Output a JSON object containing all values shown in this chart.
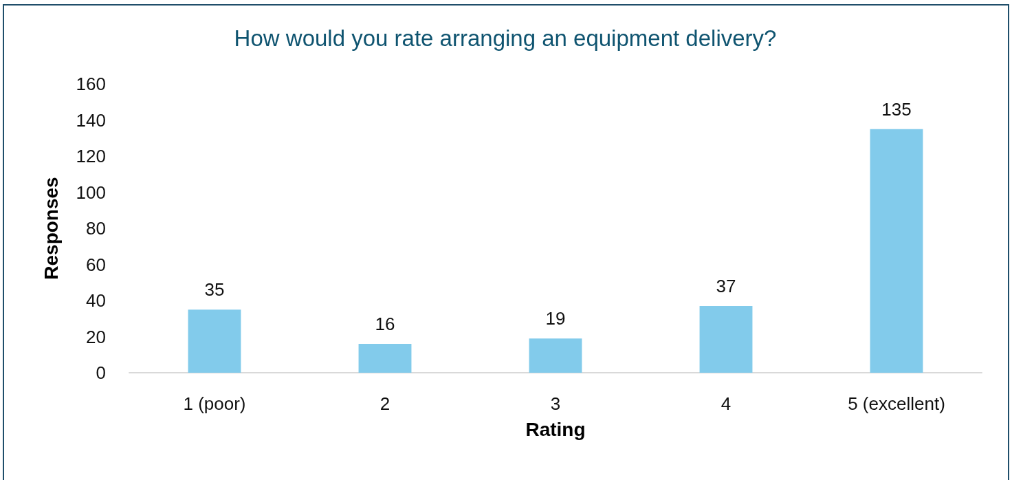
{
  "chart_data": {
    "type": "bar",
    "title": "How would you rate arranging an equipment delivery?",
    "xlabel": "Rating",
    "ylabel": "Responses",
    "categories": [
      "1 (poor)",
      "2",
      "3",
      "4",
      "5 (excellent)"
    ],
    "values": [
      35,
      16,
      19,
      37,
      135
    ],
    "color": "#82cbeb",
    "ylim": [
      0,
      160
    ],
    "yticks": [
      0,
      20,
      40,
      60,
      80,
      100,
      120,
      140,
      160
    ],
    "grid": false,
    "data_labels": true
  }
}
